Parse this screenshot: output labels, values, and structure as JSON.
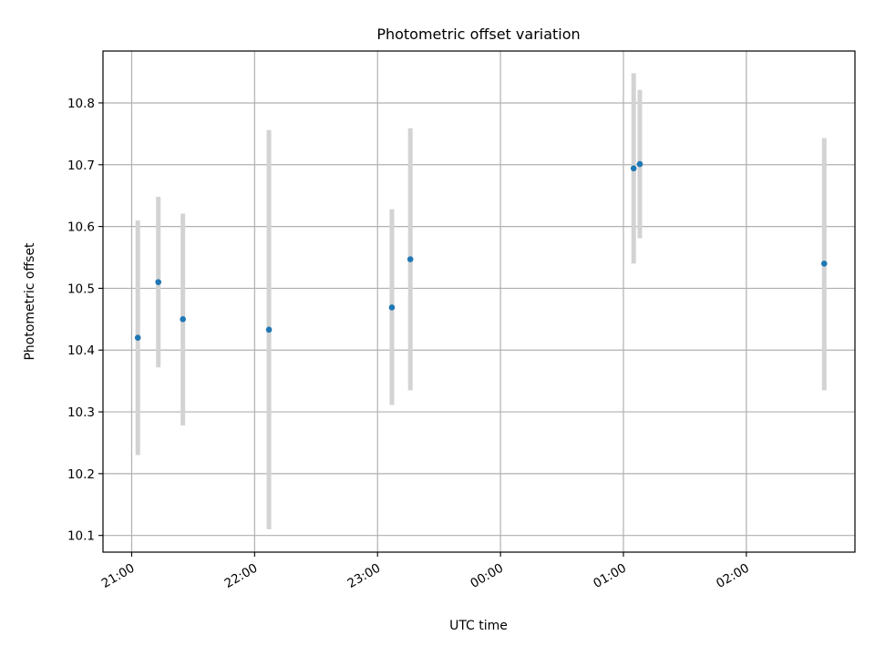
{
  "chart_data": {
    "type": "scatter",
    "title": "Photometric offset variation",
    "xlabel": "UTC time",
    "ylabel": "Photometric offset",
    "x_tick_labels": [
      "21:00",
      "22:00",
      "23:00",
      "00:00",
      "01:00",
      "02:00"
    ],
    "y_tick_labels": [
      "10.1",
      "10.2",
      "10.3",
      "10.4",
      "10.5",
      "10.6",
      "10.7",
      "10.8"
    ],
    "x_ticks": [
      "21:00",
      "22:00",
      "23:00",
      "00:00",
      "01:00",
      "02:00"
    ],
    "y_ticks": [
      10.1,
      10.2,
      10.3,
      10.4,
      10.5,
      10.6,
      10.7,
      10.8
    ],
    "xlim": [
      "20:46",
      "02:53"
    ],
    "ylim": [
      10.073,
      10.884
    ],
    "grid": true,
    "points": [
      {
        "x": "21:03",
        "y": 10.42,
        "yerr_low": 10.23,
        "yerr_high": 10.61
      },
      {
        "x": "21:13",
        "y": 10.51,
        "yerr_low": 10.372,
        "yerr_high": 10.648
      },
      {
        "x": "21:25",
        "y": 10.45,
        "yerr_low": 10.278,
        "yerr_high": 10.621
      },
      {
        "x": "22:07",
        "y": 10.433,
        "yerr_low": 10.11,
        "yerr_high": 10.756
      },
      {
        "x": "23:07",
        "y": 10.469,
        "yerr_low": 10.311,
        "yerr_high": 10.628
      },
      {
        "x": "23:16",
        "y": 10.547,
        "yerr_low": 10.335,
        "yerr_high": 10.759
      },
      {
        "x": "01:05",
        "y": 10.694,
        "yerr_low": 10.54,
        "yerr_high": 10.848
      },
      {
        "x": "01:08",
        "y": 10.701,
        "yerr_low": 10.581,
        "yerr_high": 10.821
      },
      {
        "x": "02:38",
        "y": 10.54,
        "yerr_low": 10.335,
        "yerr_high": 10.743
      }
    ],
    "colors": {
      "marker": "#1f77b4",
      "errorbar": "#d3d3d3",
      "grid": "#b0b0b0",
      "axes": "#000000"
    }
  }
}
